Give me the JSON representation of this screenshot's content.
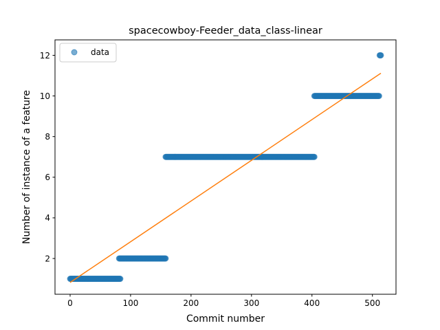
{
  "chart_data": {
    "type": "scatter",
    "title": "spacecowboy-Feeder_data_class-linear",
    "xlabel": "Commit number",
    "ylabel": "Number of instance of a feature",
    "xlim": [
      -25,
      539
    ],
    "ylim": [
      0.24,
      12.76
    ],
    "xticks": [
      0,
      100,
      200,
      300,
      400,
      500
    ],
    "yticks": [
      2,
      4,
      6,
      8,
      10,
      12
    ],
    "grid": false,
    "legend": {
      "placement": "top-left",
      "entries": [
        "data"
      ]
    },
    "colors": {
      "data": "#1f77b4",
      "fit": "#ff7f0e"
    },
    "series": [
      {
        "name": "data",
        "kind": "scatter",
        "segments": [
          {
            "x_start": 0,
            "x_end": 83,
            "y": 1
          },
          {
            "x_start": 81,
            "x_end": 158,
            "y": 2
          },
          {
            "x_start": 158,
            "x_end": 404,
            "y": 7
          },
          {
            "x_start": 404,
            "x_end": 511,
            "y": 10
          },
          {
            "x_start": 512,
            "x_end": 514,
            "y": 12
          }
        ]
      },
      {
        "kind": "line",
        "x": [
          0,
          514
        ],
        "y": [
          0.82,
          11.12
        ]
      }
    ]
  }
}
